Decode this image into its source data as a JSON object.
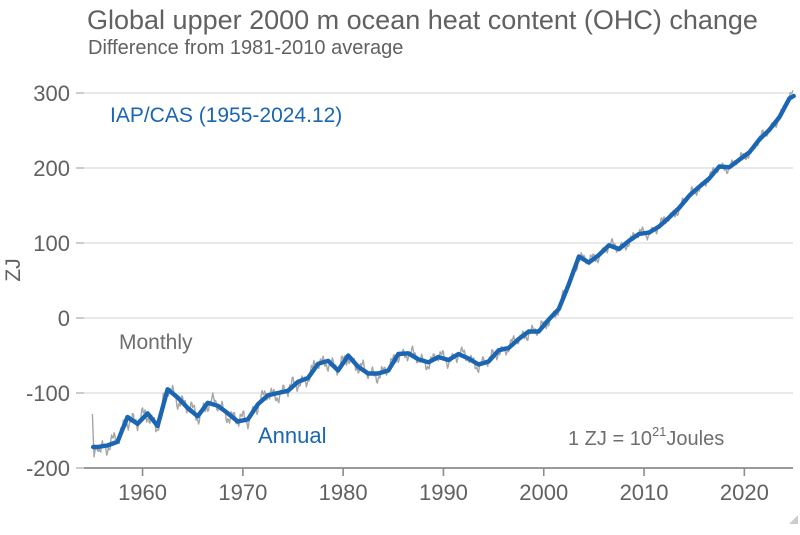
{
  "title": "Global upper 2000 m ocean heat content (OHC) change",
  "subtitle": "Difference from 1981-2010 average",
  "legend": {
    "label": "IAP/CAS (1955-2024.12)"
  },
  "labels": {
    "monthly": "Monthly",
    "annual": "Annual"
  },
  "footnote": {
    "prefix": "1 ZJ =  10",
    "exponent": "21",
    "suffix": "Joules"
  },
  "axes": {
    "ylabel": "ZJ",
    "yticks": [
      300,
      200,
      100,
      0,
      -100,
      -200
    ],
    "xticks": [
      1960,
      1970,
      1980,
      1990,
      2000,
      2010,
      2020
    ]
  },
  "colors": {
    "annual_line": "#1a66b2",
    "monthly_line": "#a6a6a6",
    "text_gray": "#6e6e6e",
    "tick_gray": "#616161",
    "axis_line": "#8c8c8c",
    "gridline": "#dcdcdc"
  },
  "chart_data": {
    "type": "line",
    "title": "Global upper 2000 m ocean heat content (OHC) change",
    "subtitle": "Difference from 1981-2010 average",
    "xlabel": "",
    "ylabel": "ZJ",
    "xlim": [
      1955,
      2025
    ],
    "ylim": [
      -200,
      300
    ],
    "grid": true,
    "legend_position": "top-left",
    "unit_note": "1 ZJ = 10^21 Joules",
    "x_years": [
      1955,
      1956,
      1957,
      1958,
      1959,
      1960,
      1961,
      1962,
      1963,
      1964,
      1965,
      1966,
      1967,
      1968,
      1969,
      1970,
      1971,
      1972,
      1973,
      1974,
      1975,
      1976,
      1977,
      1978,
      1979,
      1980,
      1981,
      1982,
      1983,
      1984,
      1985,
      1986,
      1987,
      1988,
      1989,
      1990,
      1991,
      1992,
      1993,
      1994,
      1995,
      1996,
      1997,
      1998,
      1999,
      2000,
      2001,
      2002,
      2003,
      2004,
      2005,
      2006,
      2007,
      2008,
      2009,
      2010,
      2011,
      2012,
      2013,
      2014,
      2015,
      2016,
      2017,
      2018,
      2019,
      2020,
      2021,
      2022,
      2023,
      2024
    ],
    "series": [
      {
        "name": "Annual",
        "color": "#1a66b2",
        "values": [
          -172,
          -170,
          -165,
          -132,
          -141,
          -127,
          -144,
          -95,
          -106,
          -120,
          -131,
          -113,
          -117,
          -127,
          -138,
          -135,
          -115,
          -103,
          -100,
          -97,
          -85,
          -80,
          -61,
          -57,
          -70,
          -50,
          -65,
          -74,
          -74,
          -70,
          -48,
          -47,
          -55,
          -59,
          -52,
          -56,
          -48,
          -54,
          -62,
          -58,
          -43,
          -40,
          -28,
          -18,
          -18,
          -2,
          12,
          45,
          82,
          74,
          84,
          97,
          92,
          103,
          112,
          114,
          122,
          134,
          147,
          163,
          175,
          186,
          202,
          201,
          211,
          221,
          238,
          251,
          268,
          293
        ]
      },
      {
        "name": "Monthly",
        "color": "#a6a6a6",
        "derived_from": "Annual series plus sub-annual variability (monthly resolution, 1955.0-2024.92)",
        "noise_amplitude_zj_start": 15,
        "noise_amplitude_zj_end": 7.5,
        "lead_in_months": [
          -128,
          -158,
          -185,
          -178,
          -171
        ]
      }
    ]
  }
}
